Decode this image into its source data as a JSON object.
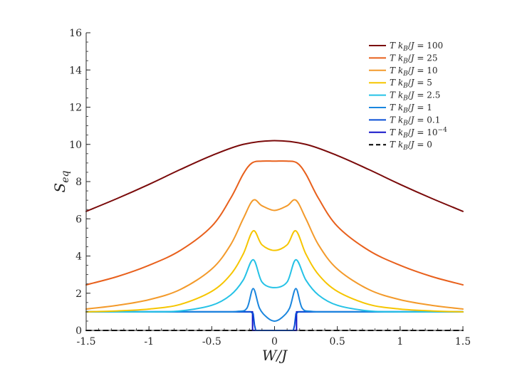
{
  "chart_data": {
    "type": "line",
    "title": "",
    "xlabel": "W/J",
    "ylabel": "S_eq",
    "xlim": [
      -1.5,
      1.5
    ],
    "ylim": [
      0,
      16
    ],
    "xticks": [
      -1.5,
      -1,
      -0.5,
      0,
      0.5,
      1,
      1.5
    ],
    "xtick_labels": [
      "-1.5",
      "-1",
      "-0.5",
      "0",
      "0.5",
      "1",
      "1.5"
    ],
    "yticks": [
      0,
      2,
      4,
      6,
      8,
      10,
      12,
      14,
      16
    ],
    "ytick_labels": [
      "0",
      "2",
      "4",
      "6",
      "8",
      "10",
      "12",
      "14",
      "16"
    ],
    "grid": false,
    "legend_position": "top-right",
    "series": [
      {
        "name": "T k_B/J = 100",
        "color": "#7a0a0a",
        "dash": "solid",
        "x": [
          -1.5,
          -1.25,
          -1.0,
          -0.75,
          -0.5,
          -0.25,
          0.0,
          0.25,
          0.5,
          0.75,
          1.0,
          1.25,
          1.5
        ],
        "y": [
          6.4,
          7.1,
          7.85,
          8.65,
          9.4,
          10.0,
          10.2,
          10.0,
          9.4,
          8.65,
          7.85,
          7.1,
          6.4
        ]
      },
      {
        "name": "T k_B/J = 25",
        "color": "#e8601c",
        "dash": "solid",
        "x": [
          -1.5,
          -1.25,
          -1.0,
          -0.75,
          -0.5,
          -0.35,
          -0.25,
          -0.18,
          -0.1,
          0.0,
          0.1,
          0.18,
          0.25,
          0.35,
          0.5,
          0.75,
          1.0,
          1.25,
          1.5
        ],
        "y": [
          2.45,
          2.9,
          3.5,
          4.3,
          5.6,
          7.1,
          8.4,
          9.0,
          9.1,
          9.1,
          9.1,
          9.0,
          8.4,
          7.1,
          5.6,
          4.3,
          3.5,
          2.9,
          2.45
        ]
      },
      {
        "name": "T k_B/J = 10",
        "color": "#f39a2b",
        "dash": "solid",
        "x": [
          -1.5,
          -1.25,
          -1.0,
          -0.75,
          -0.5,
          -0.35,
          -0.25,
          -0.17,
          -0.1,
          0.0,
          0.1,
          0.17,
          0.25,
          0.35,
          0.5,
          0.75,
          1.0,
          1.25,
          1.5
        ],
        "y": [
          1.15,
          1.35,
          1.65,
          2.2,
          3.3,
          4.6,
          6.0,
          7.0,
          6.7,
          6.45,
          6.7,
          7.0,
          6.0,
          4.6,
          3.3,
          2.2,
          1.65,
          1.35,
          1.15
        ]
      },
      {
        "name": "T k_B/J = 5",
        "color": "#f6c500",
        "dash": "solid",
        "x": [
          -1.5,
          -1.25,
          -1.0,
          -0.75,
          -0.5,
          -0.35,
          -0.25,
          -0.17,
          -0.1,
          0.0,
          0.1,
          0.17,
          0.25,
          0.35,
          0.5,
          0.75,
          1.0,
          1.25,
          1.5
        ],
        "y": [
          1.0,
          1.05,
          1.15,
          1.4,
          2.1,
          3.0,
          4.1,
          5.35,
          4.6,
          4.3,
          4.6,
          5.35,
          4.1,
          3.0,
          2.1,
          1.4,
          1.15,
          1.05,
          1.0
        ]
      },
      {
        "name": "T k_B/J = 2.5",
        "color": "#25c2e6",
        "dash": "solid",
        "x": [
          -1.5,
          -1.0,
          -0.75,
          -0.5,
          -0.35,
          -0.25,
          -0.17,
          -0.1,
          0.0,
          0.1,
          0.17,
          0.25,
          0.35,
          0.5,
          0.75,
          1.0,
          1.5
        ],
        "y": [
          1.0,
          1.0,
          1.05,
          1.35,
          1.9,
          2.7,
          3.8,
          2.6,
          2.3,
          2.6,
          3.8,
          2.7,
          1.9,
          1.35,
          1.05,
          1.0,
          1.0
        ]
      },
      {
        "name": "T k_B/J = 1",
        "color": "#1a86de",
        "dash": "solid",
        "x": [
          -1.5,
          -0.5,
          -0.3,
          -0.22,
          -0.17,
          -0.12,
          -0.06,
          0.0,
          0.06,
          0.12,
          0.17,
          0.22,
          0.3,
          0.5,
          1.5
        ],
        "y": [
          1.0,
          1.0,
          1.02,
          1.2,
          2.25,
          1.2,
          0.7,
          0.5,
          0.7,
          1.2,
          2.25,
          1.2,
          1.02,
          1.0,
          1.0
        ]
      },
      {
        "name": "T k_B/J = 0.1",
        "color": "#0a4fd6",
        "dash": "solid",
        "x": [
          -1.5,
          -0.19,
          -0.17,
          -0.16,
          -0.15,
          0.15,
          0.16,
          0.17,
          0.19,
          1.5
        ],
        "y": [
          1.0,
          1.0,
          0.9,
          0.3,
          0.0,
          0.0,
          0.3,
          0.9,
          1.0,
          1.0
        ]
      },
      {
        "name": "T k_B/J = 10^{-4}",
        "color": "#1414c8",
        "dash": "solid",
        "x": [
          -1.5,
          -0.175,
          -0.175,
          0.175,
          0.175,
          1.5
        ],
        "y": [
          1.0,
          1.0,
          0.0,
          0.0,
          1.0,
          1.0
        ]
      },
      {
        "name": "T k_B/J = 0",
        "color": "#000000",
        "dash": "dashed",
        "x": [
          -1.5,
          1.5
        ],
        "y": [
          0.0,
          0.0
        ]
      }
    ]
  }
}
